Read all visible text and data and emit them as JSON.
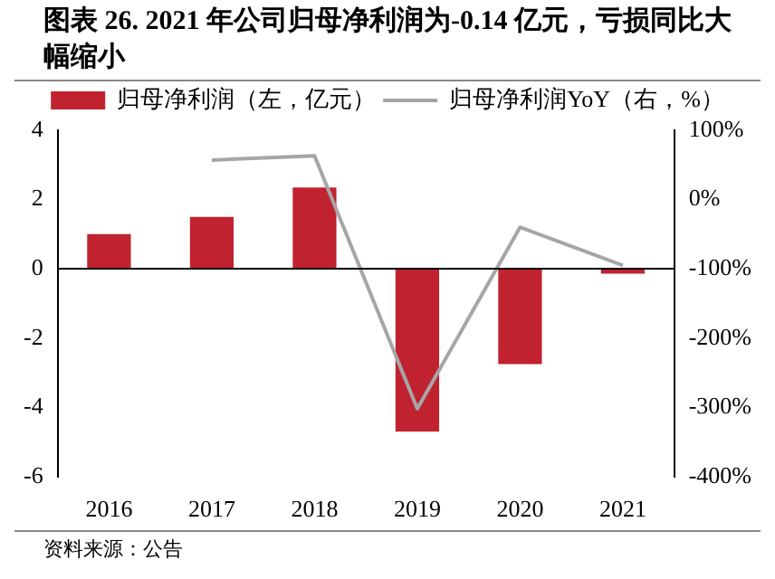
{
  "chart_data": {
    "type": "bar",
    "title": "图表 26. 2021 年公司归母净利润为-0.14 亿元，亏损同比大幅缩小",
    "categories": [
      "2016",
      "2017",
      "2018",
      "2019",
      "2020",
      "2021"
    ],
    "series": [
      {
        "name": "归母净利润（左，亿元）",
        "color": "#c0232f",
        "values": [
          1.0,
          1.5,
          2.35,
          -4.7,
          -2.75,
          -0.14
        ]
      },
      {
        "name": "归母净利润YoY（右，%）",
        "type": "line",
        "axis": "y2",
        "color": "#a6a6a6",
        "marker": "none",
        "values": [
          null,
          57,
          63,
          -302,
          -40,
          -95
        ]
      }
    ],
    "ylim": [
      -6,
      4
    ],
    "yticks": [
      -6,
      -4,
      -2,
      0,
      2,
      4
    ],
    "y2lim": [
      -400,
      100
    ],
    "y2ticks": [
      {
        "value": -400,
        "label": "-400%"
      },
      {
        "value": -300,
        "label": "-300%"
      },
      {
        "value": -200,
        "label": "-200%"
      },
      {
        "value": -100,
        "label": "-100%"
      },
      {
        "value": 0,
        "label": "0%"
      },
      {
        "value": 100,
        "label": "100%"
      }
    ],
    "grid": false,
    "legend": "top",
    "ref_lines": [
      {
        "axis": "y",
        "value": 0,
        "color": "#000000"
      }
    ],
    "annotations": [
      "资料来源：公告"
    ]
  }
}
